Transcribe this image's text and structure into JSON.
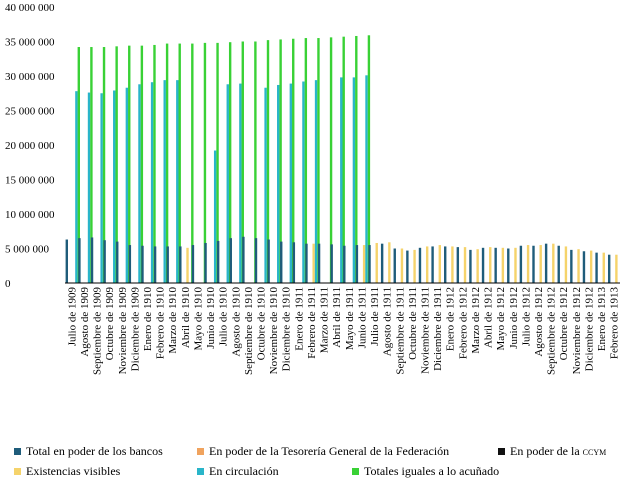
{
  "chart_data": {
    "type": "bar",
    "title": "",
    "xlabel": "",
    "ylabel": "",
    "ylim": [
      0,
      40000000
    ],
    "yticks": [
      0,
      5000000,
      10000000,
      15000000,
      20000000,
      25000000,
      30000000,
      35000000,
      40000000
    ],
    "ytick_labels": [
      "0",
      "5 000 000",
      "10 000 000",
      "15 000 000",
      "20 000 000",
      "25 000 000",
      "30 000 000",
      "35 000 000",
      "40 000 000"
    ],
    "legend_position": "bottom",
    "categories": [
      "Julio de 1909",
      "Agosto de 1909",
      "Septiembre de 1909",
      "Octubre de 1909",
      "Noviembre de 1909",
      "Diciembre de 1909",
      "Enero de 1910",
      "Febrero de 1910",
      "Marzo de 1910",
      "Abril de 1910",
      "Mayo de 1910",
      "Junio de 1910",
      "Julio de 1910",
      "Agosto de 1910",
      "Septiembre de 1910",
      "Octubre de 1910",
      "Noviembre de 1910",
      "Diciembre de 1910",
      "Enero de 1911",
      "Febrero de 1911",
      "Marzo de 1911",
      "Abril de 1911",
      "Mayo de 1911",
      "Junio de 1911",
      "Julio de 1911",
      "Agosto de 1911",
      "Septiembre de 1911",
      "Octubre de 1911",
      "Noviembre de 1911",
      "Diciembre de 1911",
      "Enero de 1912",
      "Febrero de 1912",
      "Marzo de 1912",
      "Abril de 1912",
      "Mayo de 1912",
      "Junio de 1912",
      "Julio de 1912",
      "Agosto de 1912",
      "Septiembre de 1912",
      "Octubre de 1912",
      "Noviembre de 1912",
      "Diciembre de 1912",
      "Enero de 1913",
      "Febrero de 1913"
    ],
    "series": [
      {
        "name": "Total en poder de los bancos",
        "color": "#1f5c7a",
        "values": [
          6300000,
          6500000,
          6600000,
          6200000,
          6000000,
          5500000,
          5400000,
          5300000,
          5300000,
          5300000,
          5500000,
          5800000,
          6100000,
          6500000,
          6700000,
          6500000,
          6300000,
          6000000,
          5900000,
          5700000,
          5700000,
          5600000,
          5400000,
          5500000,
          5500000,
          5700000,
          5000000,
          4700000,
          5100000,
          5300000,
          5300000,
          5200000,
          4800000,
          5100000,
          5100000,
          5000000,
          5400000,
          5400000,
          5700000,
          5400000,
          4800000,
          4600000,
          4400000,
          4100000
        ]
      },
      {
        "name": "En poder de la Tesorería General de la Federación",
        "color": "#f0a35e",
        "values": [
          0,
          0,
          0,
          0,
          0,
          0,
          0,
          0,
          0,
          0,
          0,
          0,
          0,
          0,
          0,
          0,
          0,
          0,
          0,
          0,
          0,
          0,
          0,
          0,
          0,
          0,
          0,
          0,
          0,
          0,
          0,
          0,
          0,
          0,
          0,
          0,
          0,
          0,
          0,
          0,
          0,
          0,
          0,
          0
        ]
      },
      {
        "name": "En poder de la ccym",
        "color": "#111111",
        "values": [
          0,
          0,
          0,
          0,
          0,
          0,
          0,
          0,
          0,
          0,
          0,
          0,
          0,
          0,
          0,
          0,
          0,
          0,
          0,
          0,
          0,
          0,
          0,
          0,
          0,
          0,
          0,
          0,
          0,
          0,
          0,
          0,
          0,
          0,
          0,
          0,
          0,
          0,
          0,
          0,
          0,
          0,
          0,
          0
        ]
      },
      {
        "name": "Existencias visibles",
        "color": "#f5d36b",
        "values": [
          0,
          0,
          0,
          0,
          0,
          0,
          0,
          0,
          0,
          5100000,
          0,
          0,
          0,
          0,
          0,
          0,
          0,
          0,
          0,
          5700000,
          0,
          0,
          0,
          5500000,
          5800000,
          5900000,
          5000000,
          4800000,
          5300000,
          5500000,
          5300000,
          5200000,
          4900000,
          5200000,
          5100000,
          5100000,
          5500000,
          5500000,
          5700000,
          5300000,
          4900000,
          4700000,
          4400000,
          4100000
        ]
      },
      {
        "name": "En circulación",
        "color": "#29b5c9",
        "values": [
          27800000,
          27600000,
          27500000,
          27900000,
          28300000,
          28800000,
          29100000,
          29400000,
          29400000,
          0,
          0,
          19200000,
          28800000,
          28900000,
          0,
          28300000,
          28700000,
          28900000,
          29200000,
          29400000,
          0,
          29800000,
          29800000,
          30100000,
          0,
          0,
          0,
          0,
          0,
          0,
          0,
          0,
          0,
          0,
          0,
          0,
          0,
          0,
          0,
          0,
          0,
          0,
          0,
          0
        ]
      },
      {
        "name": "Totales iguales a lo acuñado",
        "color": "#39d135",
        "values": [
          34200000,
          34200000,
          34200000,
          34300000,
          34400000,
          34400000,
          34500000,
          34700000,
          34700000,
          34700000,
          34800000,
          34800000,
          34900000,
          35000000,
          35000000,
          35200000,
          35300000,
          35400000,
          35500000,
          35500000,
          35600000,
          35700000,
          35800000,
          35900000,
          0,
          0,
          0,
          0,
          0,
          0,
          0,
          0,
          0,
          0,
          0,
          0,
          0,
          0,
          0,
          0,
          0,
          0,
          0,
          0
        ]
      }
    ]
  }
}
